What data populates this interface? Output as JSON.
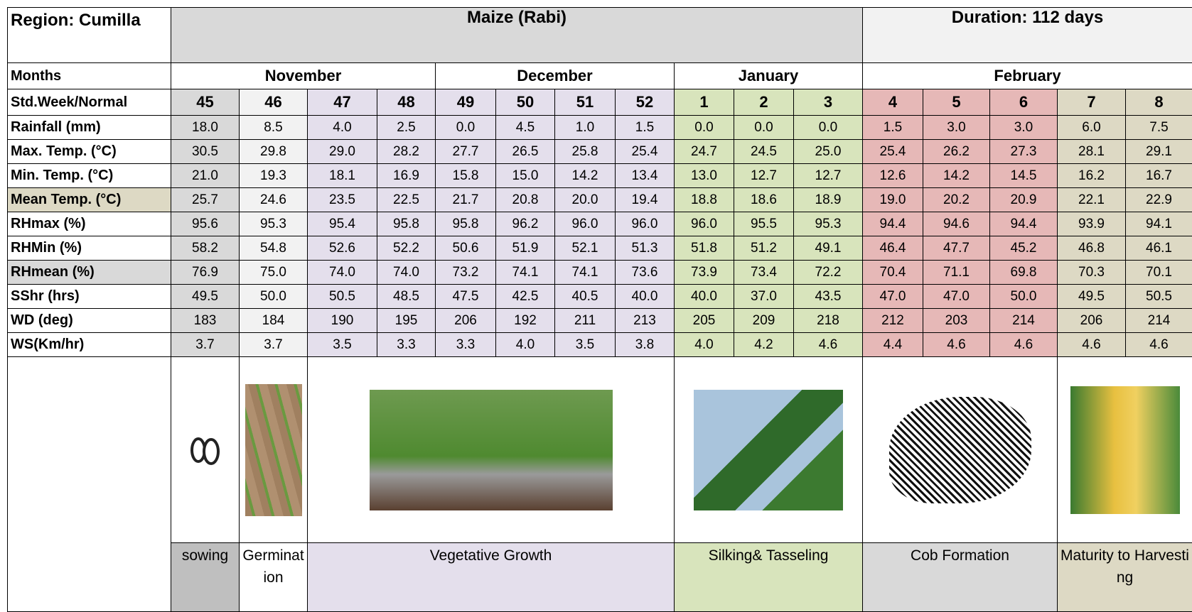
{
  "header": {
    "region": "Region: Cumilla",
    "crop": "Maize (Rabi)",
    "duration": "Duration: 112 days"
  },
  "months": {
    "label": "Months",
    "items": [
      {
        "name": "November",
        "span": 4
      },
      {
        "name": "December",
        "span": 4
      },
      {
        "name": "January",
        "span": 3
      },
      {
        "name": "February",
        "span": 5
      }
    ]
  },
  "weeks": {
    "label": "Std.Week/Normal",
    "values": [
      "45",
      "46",
      "47",
      "48",
      "49",
      "50",
      "51",
      "52",
      "1",
      "2",
      "3",
      "4",
      "5",
      "6",
      "7",
      "8"
    ]
  },
  "rows": [
    {
      "label": "Rainfall (mm)",
      "values": [
        "18.0",
        "8.5",
        "4.0",
        "2.5",
        "0.0",
        "4.5",
        "1.0",
        "1.5",
        "0.0",
        "0.0",
        "0.0",
        "1.5",
        "3.0",
        "3.0",
        "6.0",
        "7.5"
      ]
    },
    {
      "label": "Max. Temp. (°C)",
      "values": [
        "30.5",
        "29.8",
        "29.0",
        "28.2",
        "27.7",
        "26.5",
        "25.8",
        "25.4",
        "24.7",
        "24.5",
        "25.0",
        "25.4",
        "26.2",
        "27.3",
        "28.1",
        "29.1"
      ]
    },
    {
      "label": "Min. Temp. (°C)",
      "values": [
        "21.0",
        "19.3",
        "18.1",
        "16.9",
        "15.8",
        "15.0",
        "14.2",
        "13.4",
        "13.0",
        "12.7",
        "12.7",
        "12.6",
        "14.2",
        "14.5",
        "16.2",
        "16.7"
      ]
    },
    {
      "label": "Mean Temp. (°C)",
      "values": [
        "25.7",
        "24.6",
        "23.5",
        "22.5",
        "21.7",
        "20.8",
        "20.0",
        "19.4",
        "18.8",
        "18.6",
        "18.9",
        "19.0",
        "20.2",
        "20.9",
        "22.1",
        "22.9"
      ]
    },
    {
      "label": "RHmax (%)",
      "values": [
        "95.6",
        "95.3",
        "95.4",
        "95.8",
        "95.8",
        "96.2",
        "96.0",
        "96.0",
        "96.0",
        "95.5",
        "95.3",
        "94.4",
        "94.6",
        "94.4",
        "93.9",
        "94.1"
      ]
    },
    {
      "label": "RHMin (%)",
      "values": [
        "58.2",
        "54.8",
        "52.6",
        "52.2",
        "50.6",
        "51.9",
        "52.1",
        "51.3",
        "51.8",
        "51.2",
        "49.1",
        "46.4",
        "47.7",
        "45.2",
        "46.8",
        "46.1"
      ]
    },
    {
      "label": "RHmean (%)",
      "values": [
        "76.9",
        "75.0",
        "74.0",
        "74.0",
        "73.2",
        "74.1",
        "74.1",
        "73.6",
        "73.9",
        "73.4",
        "72.2",
        "70.4",
        "71.1",
        "69.8",
        "70.3",
        "70.1"
      ]
    },
    {
      "label": "SShr (hrs)",
      "values": [
        "49.5",
        "50.0",
        "50.5",
        "48.5",
        "47.5",
        "42.5",
        "40.5",
        "40.0",
        "40.0",
        "37.0",
        "43.5",
        "47.0",
        "47.0",
        "50.0",
        "49.5",
        "50.5"
      ]
    },
    {
      "label": "WD (deg)",
      "values": [
        "183",
        "184",
        "190",
        "195",
        "206",
        "192",
        "211",
        "213",
        "205",
        "209",
        "218",
        "212",
        "203",
        "214",
        "206",
        "214"
      ]
    },
    {
      "label": "WS(Km/hr)",
      "values": [
        "3.7",
        "3.7",
        "3.5",
        "3.3",
        "3.3",
        "4.0",
        "3.5",
        "3.8",
        "4.0",
        "4.2",
        "4.6",
        "4.4",
        "4.6",
        "4.6",
        "4.6",
        "4.6"
      ]
    }
  ],
  "stages": [
    {
      "name": "sowing",
      "span": 1
    },
    {
      "name": "Germination",
      "span": 1
    },
    {
      "name": "Vegetative Growth",
      "span": 6
    },
    {
      "name": "Silking& Tasseling",
      "span": 3
    },
    {
      "name": "Cob Formation",
      "span": 3
    },
    {
      "name": "Maturity to Harvesting",
      "span": 2
    }
  ]
}
